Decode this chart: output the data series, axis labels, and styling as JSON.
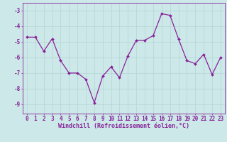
{
  "x": [
    0,
    1,
    2,
    3,
    4,
    5,
    6,
    7,
    8,
    9,
    10,
    11,
    12,
    13,
    14,
    15,
    16,
    17,
    18,
    19,
    20,
    21,
    22,
    23
  ],
  "y": [
    -4.7,
    -4.7,
    -5.6,
    -4.8,
    -6.2,
    -7.0,
    -7.0,
    -7.4,
    -8.9,
    -7.2,
    -6.6,
    -7.3,
    -5.9,
    -4.9,
    -4.9,
    -4.6,
    -3.2,
    -3.3,
    -4.8,
    -6.2,
    -6.4,
    -5.8,
    -7.1,
    -6.0
  ],
  "line_color": "#882299",
  "marker": "D",
  "marker_size": 2.0,
  "linewidth": 0.9,
  "xlabel": "Windchill (Refroidissement éolien,°C)",
  "xlabel_fontsize": 6.0,
  "xtick_labels": [
    "0",
    "1",
    "2",
    "3",
    "4",
    "5",
    "6",
    "7",
    "8",
    "9",
    "10",
    "11",
    "12",
    "13",
    "14",
    "15",
    "16",
    "17",
    "18",
    "19",
    "20",
    "21",
    "22",
    "23"
  ],
  "yticks": [
    -9,
    -8,
    -7,
    -6,
    -5,
    -4,
    -3
  ],
  "ylim": [
    -9.6,
    -2.5
  ],
  "xlim": [
    -0.5,
    23.5
  ],
  "background_color": "#cce8e8",
  "grid_color": "#aacccc",
  "tick_color": "#882299",
  "tick_fontsize": 5.5,
  "title": ""
}
